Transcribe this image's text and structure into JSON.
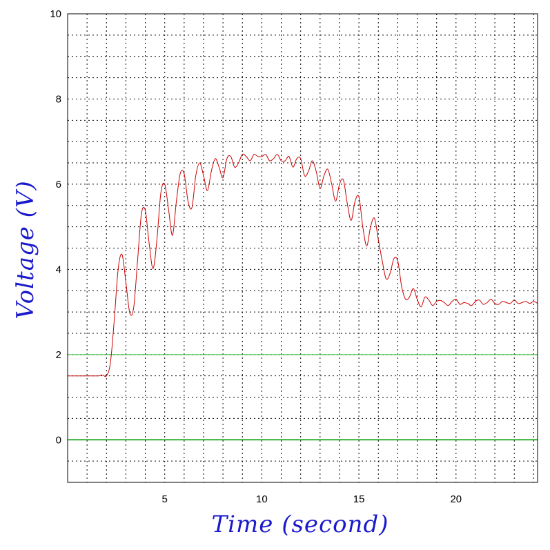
{
  "chart_data": {
    "type": "line",
    "title": "",
    "xlabel": "Time (second)",
    "ylabel": "Voltage (V)",
    "xlim": [
      0,
      24.2
    ],
    "ylim": [
      -1,
      10
    ],
    "x_ticks": [
      5,
      10,
      15,
      20
    ],
    "y_ticks": [
      0,
      2,
      4,
      6,
      8,
      10
    ],
    "grid": true,
    "grid_style": "dotted",
    "colors": {
      "signal": "#cc0000",
      "reference": "#009900",
      "axis_text": "#1a1acc",
      "grid": "#000000"
    },
    "reference_lines": [
      {
        "y": 2,
        "color": "#33bb33"
      },
      {
        "y": 0,
        "color": "#009900"
      }
    ],
    "series": [
      {
        "color": "#cc0000",
        "x": [
          0,
          0.4,
          0.8,
          1.2,
          1.6,
          1.8,
          2.0,
          2.2,
          2.4,
          2.6,
          2.8,
          3.0,
          3.2,
          3.4,
          3.6,
          3.8,
          4.0,
          4.2,
          4.4,
          4.6,
          4.8,
          5.0,
          5.2,
          5.4,
          5.6,
          5.8,
          6.0,
          6.2,
          6.4,
          6.6,
          6.8,
          7.0,
          7.2,
          7.4,
          7.6,
          7.8,
          8.0,
          8.2,
          8.4,
          8.6,
          8.8,
          9.0,
          9.2,
          9.4,
          9.6,
          9.8,
          10.0,
          10.2,
          10.4,
          10.6,
          10.8,
          11.0,
          11.2,
          11.4,
          11.6,
          11.8,
          12.0,
          12.2,
          12.4,
          12.6,
          12.8,
          13.0,
          13.2,
          13.4,
          13.6,
          13.8,
          14.0,
          14.2,
          14.4,
          14.6,
          14.8,
          15.0,
          15.2,
          15.4,
          15.6,
          15.8,
          16.0,
          16.2,
          16.4,
          16.6,
          16.8,
          17.0,
          17.2,
          17.4,
          17.6,
          17.8,
          18.0,
          18.2,
          18.4,
          18.6,
          18.8,
          19.0,
          19.2,
          19.4,
          19.6,
          19.8,
          20.0,
          20.2,
          20.4,
          20.6,
          20.8,
          21.0,
          21.2,
          21.4,
          21.6,
          21.8,
          22.0,
          22.2,
          22.4,
          22.6,
          22.8,
          23.0,
          23.2,
          23.4,
          23.6,
          23.8,
          24.0,
          24.2
        ],
        "y": [
          1.5,
          1.5,
          1.5,
          1.5,
          1.5,
          1.52,
          1.5,
          1.8,
          2.8,
          4.0,
          4.35,
          3.7,
          2.98,
          3.1,
          4.2,
          5.3,
          5.38,
          4.6,
          4.02,
          4.7,
          5.8,
          6.0,
          5.4,
          4.8,
          5.6,
          6.25,
          6.25,
          5.6,
          5.45,
          6.2,
          6.5,
          6.2,
          5.85,
          6.3,
          6.6,
          6.4,
          6.15,
          6.6,
          6.65,
          6.4,
          6.5,
          6.7,
          6.65,
          6.55,
          6.7,
          6.65,
          6.65,
          6.7,
          6.55,
          6.6,
          6.7,
          6.55,
          6.55,
          6.65,
          6.4,
          6.6,
          6.6,
          6.2,
          6.3,
          6.55,
          6.3,
          5.9,
          6.2,
          6.35,
          6.0,
          5.6,
          6.0,
          6.1,
          5.55,
          5.15,
          5.6,
          5.7,
          5.0,
          4.55,
          5.0,
          5.2,
          4.7,
          4.2,
          3.78,
          3.9,
          4.25,
          4.2,
          3.6,
          3.3,
          3.35,
          3.55,
          3.3,
          3.12,
          3.35,
          3.28,
          3.15,
          3.25,
          3.27,
          3.22,
          3.15,
          3.25,
          3.3,
          3.18,
          3.22,
          3.2,
          3.15,
          3.25,
          3.28,
          3.18,
          3.22,
          3.3,
          3.2,
          3.18,
          3.25,
          3.22,
          3.2,
          3.28,
          3.2,
          3.22,
          3.25,
          3.2,
          3.25,
          3.2
        ]
      }
    ]
  }
}
